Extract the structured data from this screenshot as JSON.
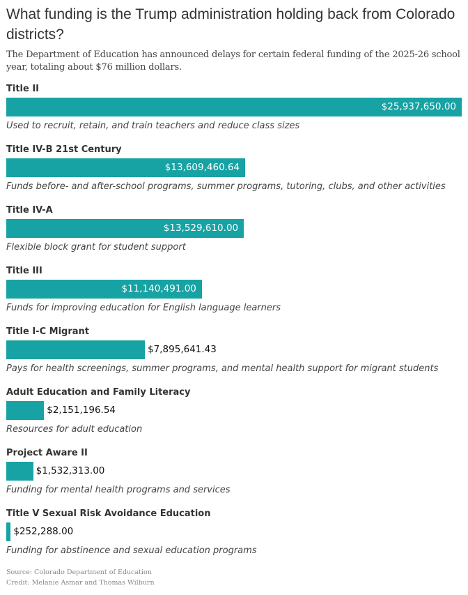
{
  "chart_data": {
    "type": "bar",
    "orientation": "horizontal",
    "title": "What funding is the Trump administration holding back from Colorado districts?",
    "subtitle": "The Department of Education has announced delays for certain federal funding of the 2025-26 school year, totaling about $76 million dollars.",
    "bar_color": "#17a2a4",
    "grid": false,
    "categories": [
      "Title II",
      "Title IV-B 21st Century",
      "Title IV-A",
      "Title III",
      "Title I-C Migrant",
      "Adult Education and Family Literacy",
      "Project Aware II",
      "Title V Sexual Risk Avoidance Education"
    ],
    "values": [
      25937650.0,
      13609460.64,
      13529610.0,
      11140491.0,
      7895641.43,
      2151196.54,
      1532313.0,
      252288.0
    ],
    "value_labels": [
      "$25,937,650.00",
      "$13,609,460.64",
      "$13,529,610.00",
      "$11,140,491.00",
      "$7,895,641.43",
      "$2,151,196.54",
      "$1,532,313.00",
      "$252,288.00"
    ],
    "descriptions": [
      "Used to recruit, retain, and train teachers and reduce class sizes",
      "Funds before- and after-school programs, summer programs, tutoring, clubs, and other activities",
      "Flexible block grant for student support",
      "Funds for improving education for English language learners",
      "Pays for health screenings, summer programs, and mental health support for migrant students",
      "Resources for adult education",
      "Funding for mental health programs and services",
      "Funding for abstinence and sexual education programs"
    ],
    "source": "Source: Colorado Department of Education",
    "credit": "Credit: Melanie Asmar and Thomas Wilburn"
  }
}
